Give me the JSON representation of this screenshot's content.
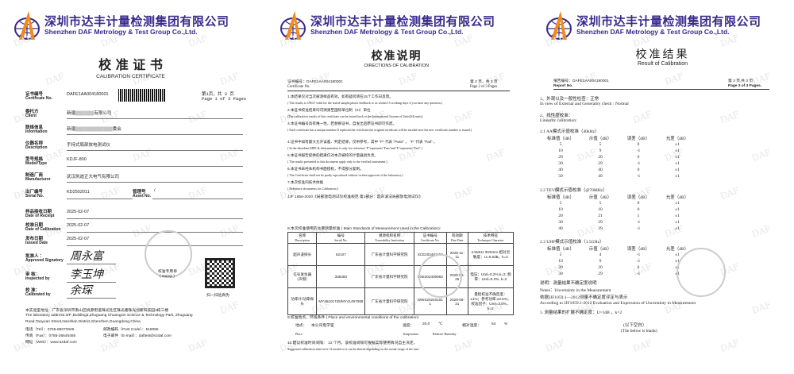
{
  "company": {
    "name_cn": "深圳市达丰计量检测集团有限公司",
    "name_en": "Shenzhen DAF Metrology & Test Group Co.,Ltd.",
    "watermark": "DAF",
    "brand_colors": {
      "primary": "#3a2a8c",
      "accent": "#f08a1c"
    }
  },
  "page1": {
    "title_cn": "校  准  证  书",
    "title_en": "CALIBRATION    CERTIFICATE",
    "page_cn": "第1页，共 3 页",
    "page_en": "Page 1 of 3 Pages",
    "fields": [
      {
        "cn": "证书编号",
        "en": "Certificate No.",
        "value": "DAFE1AA004180001"
      },
      {
        "cn": "委托方",
        "en": "Client",
        "value": "新疆▒▒▒▒▒▒有限公司"
      },
      {
        "cn": "联络信息",
        "en": "Information",
        "value": "新疆▒▒▒▒▒▒▒▒▒▒▒▒委会"
      },
      {
        "cn": "仪器名称",
        "en": "Description",
        "value": "手持式局部放电测试仪"
      },
      {
        "cn": "型号规格",
        "en": "Model/Type",
        "value": "KDJF-800"
      },
      {
        "cn": "制造厂商",
        "en": "Manufacturer",
        "value": "武汉凯迪正大电气有限公司"
      },
      {
        "cn": "出厂编号",
        "en": "Serial  No.",
        "value": "KD2502011"
      },
      {
        "cn": "样品接收日期",
        "en": "Date of Receipt",
        "value": "2025-02-07"
      },
      {
        "cn": "校准日期",
        "en": "Date of Calibration",
        "value": "2025-02-07"
      },
      {
        "cn": "发布日期",
        "en": "Issued Date",
        "value": "2025-02-07"
      }
    ],
    "asset": {
      "cn": "管理号",
      "en": "Asset No.",
      "value": "/"
    },
    "signatures": [
      {
        "cn": "批准人 ：",
        "en": "Approved Signatory",
        "name": "周永富"
      },
      {
        "cn": "审 核：",
        "en": "Inspected by",
        "name": "李玉坤"
      },
      {
        "cn": "校 准：",
        "en": "Calibrated  by",
        "name": "余琛"
      }
    ],
    "stamp_cn": "校准专用章",
    "stamp_en": "( stamp )",
    "qr_label": "扫一扫验真伪",
    "address_cn": "本实验室地址：广东省深圳市南山区桃源街道珠光社区珠光路珠光创新科技园3栋三楼",
    "address_en1": "The laboratory address:3/F.,Building3,Zhuguang Chuangxin Science & Technology Park, Zhuguang",
    "address_en2": "Road,Taoyuan Street,Nanshan District,Shenzhen,Guangdong,China",
    "tel": "电话（Tel）：0755-86070926",
    "post": "邮政编码（Post Code）：518055",
    "fax": "传真（Fax）：0755-26645455",
    "email": "电子邮件（E-mail）：daftest@szdaf.com",
    "web": "网址（Web）：www.szdaf.com"
  },
  "page2": {
    "title_cn": "校准说明",
    "title_en": "DIRECTIONS OF CALIBRATION",
    "cert_label_cn": "证书编号：DAFE1AA004180001",
    "cert_label_en": "Certificate No.",
    "page_cn": "第 2 页，共 3 页",
    "page_en": "Page  2  of    3  Pages",
    "notes": [
      {
        "cn": "1.本结果仅对当次被测样品有效，如有疑问请在15个工作日反馈。",
        "en": "( The results is ONLY valid for the tested sample,please feedback to us within 15 working days if you have any question.)"
      },
      {
        "cn": "2.本证书校准结果均可溯源至国际单位制（SI）单位",
        "en": "(The calibration results of this certificate can be traced back to the International System of Units(SI) units)"
      },
      {
        "cn": "3.本证书编号具有唯一性，若替换证书，自发出后原证书即可作废。",
        "en": "( Each certificate has a unique number.If replaced the certificate,the original certificate will be invalid once the new certificate number is issued.)"
      },
      {
        "cn": "4.证书中如有最大允许误差、判定结果，仅供参考，其中 \"P\" 代表 \"Pass\" ， \"F\" 代表 \"Fail\" 。",
        "en": "( In the datasheet,MPE & determination is only for reference,\"P\"represents\"Pass\"and\"F\"represents\"Fail\".)"
      },
      {
        "cn": "5.本证书报告提供的结果仅对本次被校的计量器具负责。",
        "en": "( The results presented in this document apply only to the verified instrument.)"
      },
      {
        "cn": "6.本证书未经本机构书面授权，不得部分复制。",
        "en": "( The Certificate shall not be partly reproduced without written approval of the laboratory.)"
      },
      {
        "cn": "7.本次校准的技术依据",
        "en": "( Reference documents  for Calibration:)"
      }
    ],
    "reference": "JJF 1856-2020《局部放电测试仪校准规范 第1部分：超声波法局部放电测试仪》",
    "standards_heading": "8.本次校准使用的主要测量标准 ( Main Standards of Measurement Used in the Calibration):",
    "table_headers": [
      {
        "cn": "名称",
        "en": "Description"
      },
      {
        "cn": "编号",
        "en": "Serial No."
      },
      {
        "cn": "溯源机构名称",
        "en": "Traceability Institution"
      },
      {
        "cn": "证书编号",
        "en": "Certificate No."
      },
      {
        "cn": "有效期",
        "en": "Due Date"
      },
      {
        "cn": "技术特征",
        "en": "Technique Character"
      }
    ],
    "table_rows": [
      [
        "超声波探头",
        "62107",
        "广东省计量科学研究院",
        "SCE202481158",
        "2025-11-11",
        "2.5MHz Φ20mm 相对灵敏度：U=0.5dB，k=2"
      ],
      [
        "信号发生器（声频）",
        "338460",
        "广东省计量科学研究院",
        "SXE202400963",
        "2025-06-25",
        "电压：Urel=0.2%,k=2; 频率：Urel=0.2%, k=2"
      ],
      [
        "功率计/功率探头",
        "MY45101725/MY41497089",
        "广东省计量科学研究院",
        "WWS20240101 1",
        "2025-08-21",
        "量程校准不确定度：±1%；参考功率:±0.5%；校准因子：Urel=3.0%，k=2"
      ]
    ],
    "place_heading": "9.校准地点、环境条件 ( Place and environmental conditions of the calibration)",
    "place_cn": "地点：",
    "place_value": "本公司电学室",
    "place_en": "Place",
    "temp_cn": "温度：",
    "temp_value": "20.0",
    "temp_unit": "℃",
    "temp_en": "Temperature",
    "hum_cn": "相对湿度：",
    "hum_value": "54",
    "hum_unit": "%",
    "hum_en": "Relative Humidity",
    "interval_cn": "10.建议校准时间间隔：        12  个月。该校准间隔可根据实际使用情况自主决定。",
    "interval_en": "Suggested calibration interval is    12  month  or it can be altered depending on the actual usage of the user."
  },
  "page3": {
    "title_cn": "校准结果",
    "title_en": "Result of Calibration",
    "report_cn": "报告编号：DAFE1AA004180001",
    "report_en": "Report No.",
    "page_cn": "第 3 页,共 3 页 .",
    "page_en": "Page 3 of 3 Pages.",
    "item1_cn": "1、外观以及一般性检查：正常",
    "item1_en": "In view of External and Generality check : Normal",
    "item2_cn": "2、线性度校准：",
    "item2_en": "Linearity calibration:",
    "col_headers": [
      "标准值（dB）",
      "示值（dB）",
      "误差（dB）",
      "允差（dB）"
    ],
    "sections": [
      {
        "title": "2.1 AA模式示值校准（40kHz）",
        "rows": [
          [
            "5",
            "5",
            "0",
            "±1"
          ],
          [
            "10",
            "9",
            "-1",
            "±1"
          ],
          [
            "20",
            "20",
            "0",
            "±1"
          ],
          [
            "30",
            "29",
            "-1",
            "±1"
          ],
          [
            "40",
            "40",
            "0",
            "±1"
          ],
          [
            "50",
            "49",
            "-1",
            "±1"
          ]
        ]
      },
      {
        "title": "2.2 TEV模式示值校准（@70MHz）",
        "rows": [
          [
            "5",
            "5",
            "0",
            "±1"
          ],
          [
            "10",
            "10",
            "0",
            "±1"
          ],
          [
            "20",
            "21",
            "1",
            "±1"
          ],
          [
            "30",
            "29",
            "-1",
            "±1"
          ],
          [
            "40",
            "39",
            "-1",
            "±1"
          ]
        ]
      },
      {
        "title": "2.3 UHF模式示值校准（1.5GHz）",
        "rows": [
          [
            "5",
            "4",
            "-1",
            "±1"
          ],
          [
            "10",
            "9",
            "-1",
            "±1"
          ],
          [
            "20",
            "20",
            "0",
            "±1"
          ],
          [
            "30",
            "29",
            "-1",
            "±1"
          ]
        ]
      }
    ],
    "notes_cn": "说明：测量结果不确定度说明",
    "notes_en": "Notes：Uncertainty in the Measurement",
    "basis_cn": "依据JJF1059.1—2012测量不确定度评定与表示",
    "basis_en": "According to JJF1059.1-2012 Evaluation and Expression of Uncertainty in Measurement",
    "uncertainty": "1. 测量结果的扩展不确定度：U=1dB ，k=2",
    "blank_cn": "(以下空白）",
    "blank_en": "(The below is blank)"
  }
}
